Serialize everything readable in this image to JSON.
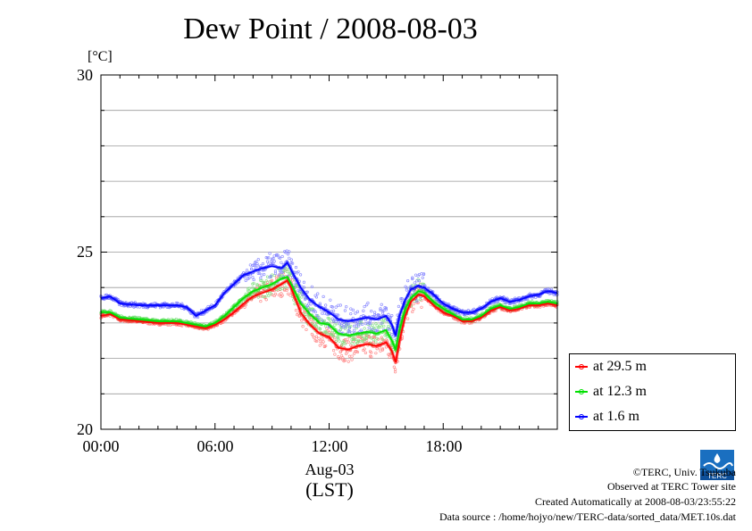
{
  "chart_data": {
    "type": "line",
    "title": "Dew Point / 2008-08-03",
    "ylabel": "[°C]",
    "xlabel": "(LST)",
    "x_date_label": "Aug-03",
    "ylim": [
      20,
      30
    ],
    "xlim_hours": [
      0,
      24
    ],
    "y_ticks": [
      "20",
      "25",
      "30"
    ],
    "x_ticks": [
      "00:00",
      "06:00",
      "12:00",
      "18:00"
    ],
    "grid": true,
    "legend_position": "bottom-right, outside plot",
    "series": [
      {
        "name": "at 29.5 m",
        "color": "#ff0000",
        "x": [
          0,
          0.5,
          1,
          2,
          3,
          4,
          4.5,
          5,
          5.5,
          6,
          6.5,
          7,
          7.5,
          8,
          8.5,
          9,
          9.5,
          9.8,
          10,
          10.5,
          11,
          11.5,
          12,
          12.5,
          13,
          13.5,
          14,
          14.5,
          15,
          15.3,
          15.5,
          15.7,
          16,
          16.3,
          16.7,
          17,
          17.5,
          18,
          18.5,
          19,
          19.5,
          20,
          20.5,
          21,
          21.5,
          22,
          22.5,
          23,
          23.5,
          24
        ],
        "y": [
          23.2,
          23.25,
          23.1,
          23.05,
          23.0,
          23.0,
          22.95,
          22.9,
          22.85,
          22.95,
          23.1,
          23.3,
          23.55,
          23.75,
          23.85,
          23.95,
          24.1,
          24.2,
          24.0,
          23.3,
          22.95,
          22.7,
          22.6,
          22.3,
          22.25,
          22.35,
          22.4,
          22.35,
          22.45,
          22.2,
          21.9,
          22.5,
          23.2,
          23.6,
          23.8,
          23.75,
          23.5,
          23.3,
          23.2,
          23.05,
          23.05,
          23.15,
          23.35,
          23.45,
          23.35,
          23.4,
          23.5,
          23.5,
          23.55,
          23.5
        ]
      },
      {
        "name": "at 12.3 m",
        "color": "#00e000",
        "x": [
          0,
          0.5,
          1,
          2,
          3,
          4,
          4.5,
          5,
          5.5,
          6,
          6.5,
          7,
          7.5,
          8,
          8.5,
          9,
          9.5,
          9.8,
          10,
          10.5,
          11,
          11.5,
          12,
          12.5,
          13,
          13.5,
          14,
          14.5,
          15,
          15.3,
          15.5,
          15.7,
          16,
          16.3,
          16.7,
          17,
          17.5,
          18,
          18.5,
          19,
          19.5,
          20,
          20.5,
          21,
          21.5,
          22,
          22.5,
          23,
          23.5,
          24
        ],
        "y": [
          23.3,
          23.3,
          23.15,
          23.1,
          23.05,
          23.05,
          23.0,
          22.95,
          22.9,
          23.0,
          23.2,
          23.45,
          23.7,
          23.9,
          24.0,
          24.1,
          24.25,
          24.3,
          24.1,
          23.55,
          23.25,
          23.0,
          22.95,
          22.7,
          22.65,
          22.7,
          22.75,
          22.7,
          22.8,
          22.5,
          22.25,
          22.8,
          23.4,
          23.7,
          23.9,
          23.85,
          23.6,
          23.4,
          23.25,
          23.1,
          23.1,
          23.2,
          23.4,
          23.5,
          23.4,
          23.45,
          23.55,
          23.55,
          23.6,
          23.55
        ]
      },
      {
        "name": "at 1.6 m",
        "color": "#0000ff",
        "x": [
          0,
          0.5,
          1,
          2,
          3,
          4,
          4.5,
          5,
          5.5,
          6,
          6.5,
          7,
          7.5,
          8,
          8.5,
          9,
          9.5,
          9.8,
          10,
          10.5,
          11,
          11.5,
          12,
          12.5,
          13,
          13.5,
          14,
          14.5,
          15,
          15.3,
          15.5,
          15.7,
          16,
          16.3,
          16.7,
          17,
          17.5,
          18,
          18.5,
          19,
          19.5,
          20,
          20.5,
          21,
          21.5,
          22,
          22.5,
          23,
          23.5,
          24
        ],
        "y": [
          23.7,
          23.75,
          23.55,
          23.5,
          23.5,
          23.5,
          23.45,
          23.2,
          23.35,
          23.5,
          23.85,
          24.1,
          24.35,
          24.45,
          24.55,
          24.6,
          24.55,
          24.7,
          24.5,
          24.0,
          23.65,
          23.45,
          23.3,
          23.1,
          23.05,
          23.1,
          23.15,
          23.1,
          23.2,
          22.95,
          22.65,
          23.2,
          23.65,
          23.95,
          24.05,
          24.0,
          23.8,
          23.55,
          23.4,
          23.3,
          23.3,
          23.4,
          23.6,
          23.7,
          23.6,
          23.65,
          23.75,
          23.8,
          23.9,
          23.85
        ]
      }
    ]
  },
  "credits": {
    "copyright": "©TERC, Univ. Tsukuba",
    "observed": "Observed at TERC Tower site",
    "created": "Created Automatically at 2008-08-03/23:55:22",
    "source": "Data source : /home/hojyo/new/TERC-data/sorted_data/MET.10s.dat"
  },
  "logo": {
    "text": "TERC"
  }
}
